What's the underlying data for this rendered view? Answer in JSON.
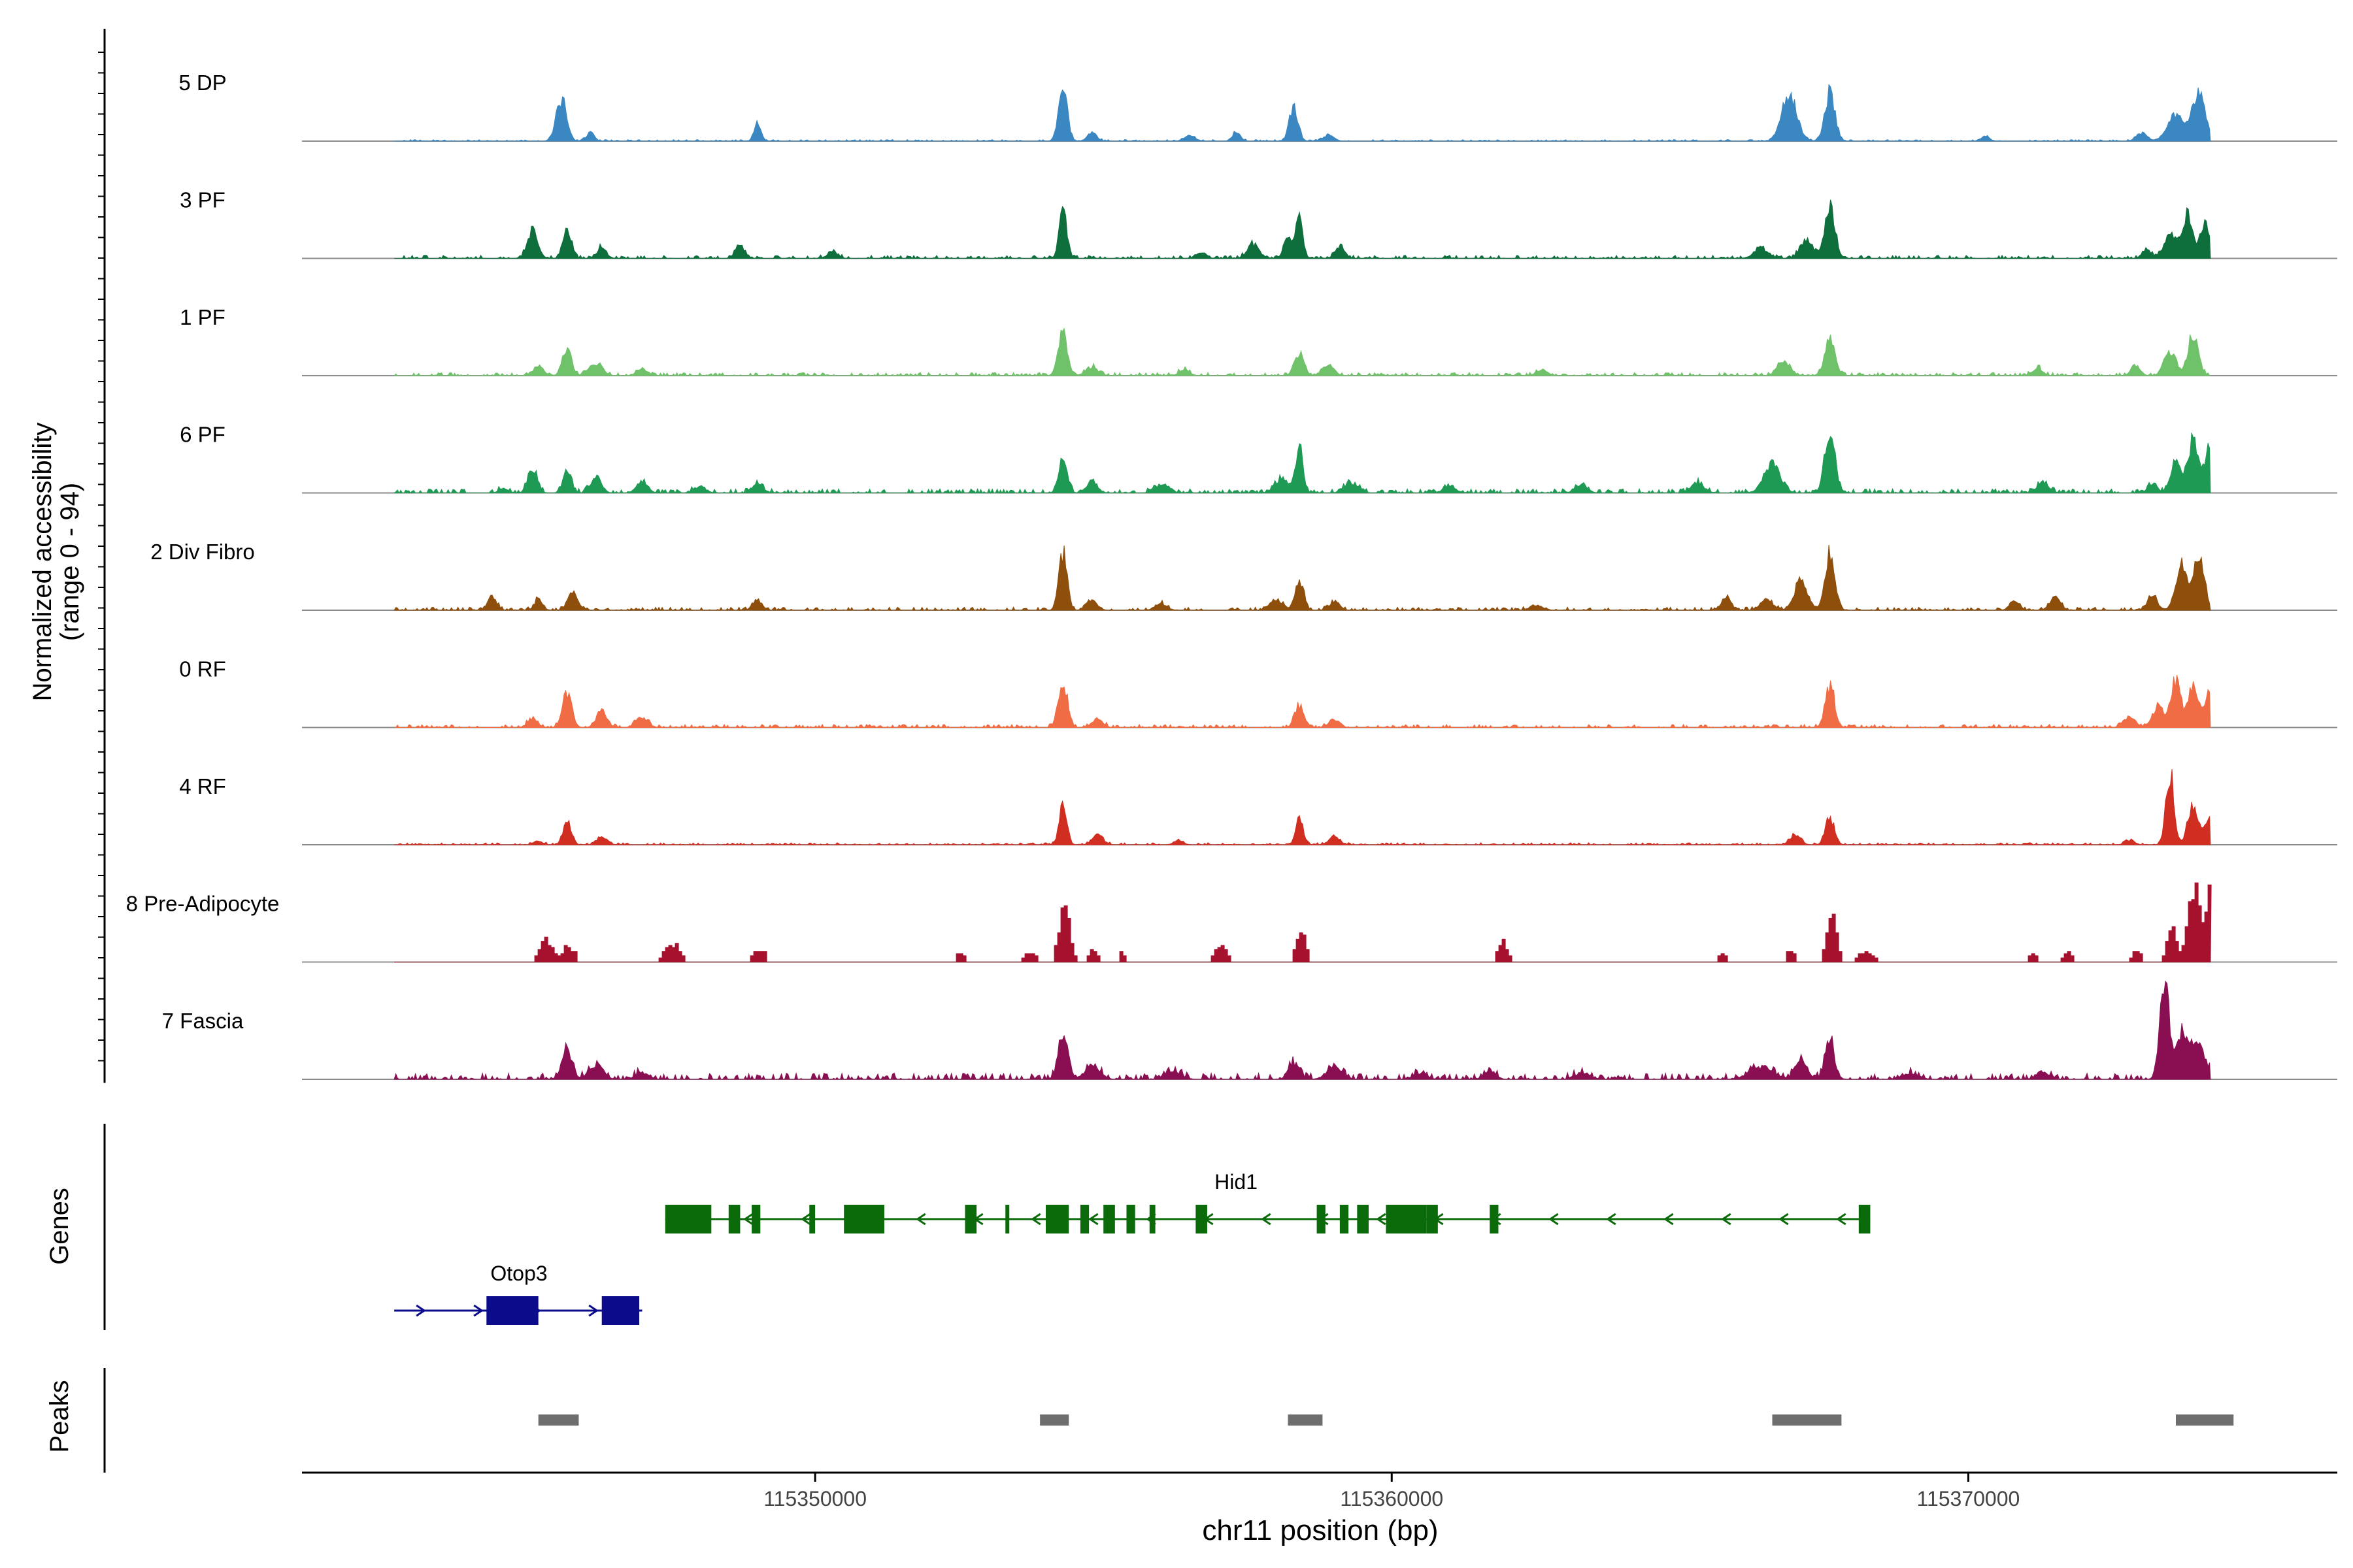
{
  "chart_data": {
    "type": "area",
    "chromosome": "chr11",
    "xlabel": "chr11 position (bp)",
    "ylabel_line1": "Normalized accessibility",
    "ylabel_line2": "(range 0 - 94)",
    "y_range": [
      0,
      94
    ],
    "xlim": [
      115341100,
      115376400
    ],
    "data_start": 115342700,
    "data_end": 115374200,
    "xticks": [
      {
        "value": 115350000,
        "label": "115350000"
      },
      {
        "value": 115360000,
        "label": "115360000"
      },
      {
        "value": 115370000,
        "label": "115370000"
      }
    ],
    "tracks": [
      {
        "name": "5 DP",
        "color": "#3a87c2",
        "noise": 1.5,
        "floor": 0,
        "peaks": [
          [
            115345600,
            40,
            90
          ],
          [
            115346100,
            8,
            70
          ],
          [
            115349000,
            16,
            60
          ],
          [
            115354300,
            52,
            75
          ],
          [
            115354800,
            8,
            80
          ],
          [
            115356500,
            6,
            90
          ],
          [
            115357300,
            8,
            70
          ],
          [
            115358300,
            32,
            75
          ],
          [
            115358900,
            6,
            90
          ],
          [
            115366900,
            44,
            130
          ],
          [
            115367600,
            48,
            85
          ],
          [
            115370300,
            5,
            70
          ],
          [
            115373000,
            8,
            90
          ],
          [
            115373600,
            24,
            150
          ],
          [
            115374000,
            46,
            110
          ]
        ]
      },
      {
        "name": "3 PF",
        "color": "#0e6e3c",
        "noise": 3,
        "floor": 0,
        "peaks": [
          [
            115345100,
            26,
            90
          ],
          [
            115345700,
            28,
            70
          ],
          [
            115346300,
            10,
            80
          ],
          [
            115348700,
            12,
            80
          ],
          [
            115350300,
            6,
            90
          ],
          [
            115354300,
            46,
            65
          ],
          [
            115356700,
            6,
            80
          ],
          [
            115357600,
            14,
            100
          ],
          [
            115358200,
            22,
            70
          ],
          [
            115358400,
            40,
            60
          ],
          [
            115359100,
            12,
            80
          ],
          [
            115366400,
            10,
            120
          ],
          [
            115367200,
            18,
            110
          ],
          [
            115367600,
            52,
            85
          ],
          [
            115373100,
            8,
            80
          ],
          [
            115373500,
            22,
            110
          ],
          [
            115373800,
            40,
            90
          ],
          [
            115374100,
            32,
            80
          ]
        ]
      },
      {
        "name": "1 PF",
        "color": "#70c26a",
        "noise": 3,
        "floor": 0,
        "peaks": [
          [
            115345200,
            9,
            90
          ],
          [
            115345700,
            24,
            80
          ],
          [
            115346200,
            12,
            110
          ],
          [
            115347000,
            6,
            100
          ],
          [
            115354300,
            40,
            80
          ],
          [
            115354800,
            8,
            110
          ],
          [
            115356400,
            6,
            90
          ],
          [
            115358400,
            22,
            80
          ],
          [
            115358900,
            10,
            100
          ],
          [
            115362600,
            6,
            90
          ],
          [
            115366800,
            14,
            110
          ],
          [
            115367600,
            34,
            90
          ],
          [
            115371200,
            8,
            80
          ],
          [
            115372900,
            10,
            80
          ],
          [
            115373500,
            24,
            100
          ],
          [
            115373900,
            40,
            90
          ]
        ]
      },
      {
        "name": "6 PF",
        "color": "#1f9a55",
        "noise": 4,
        "floor": 0,
        "peaks": [
          [
            115344600,
            4,
            80
          ],
          [
            115345100,
            22,
            80
          ],
          [
            115345700,
            20,
            70
          ],
          [
            115346200,
            16,
            90
          ],
          [
            115347000,
            12,
            90
          ],
          [
            115348000,
            6,
            100
          ],
          [
            115349000,
            10,
            90
          ],
          [
            115354300,
            36,
            70
          ],
          [
            115354800,
            12,
            90
          ],
          [
            115356000,
            8,
            110
          ],
          [
            115358100,
            14,
            120
          ],
          [
            115358400,
            50,
            60
          ],
          [
            115359300,
            10,
            120
          ],
          [
            115361000,
            6,
            110
          ],
          [
            115363300,
            8,
            100
          ],
          [
            115365300,
            10,
            110
          ],
          [
            115366600,
            28,
            140
          ],
          [
            115367600,
            60,
            90
          ],
          [
            115371300,
            10,
            100
          ],
          [
            115373200,
            8,
            80
          ],
          [
            115373600,
            28,
            90
          ],
          [
            115373900,
            52,
            90
          ],
          [
            115374200,
            48,
            90
          ]
        ]
      },
      {
        "name": "2 Div Fibro",
        "color": "#8f4f0c",
        "noise": 3,
        "floor": 0,
        "peaks": [
          [
            115344400,
            12,
            80
          ],
          [
            115345200,
            10,
            70
          ],
          [
            115345800,
            16,
            90
          ],
          [
            115349000,
            10,
            80
          ],
          [
            115354300,
            54,
            70
          ],
          [
            115354800,
            10,
            90
          ],
          [
            115356000,
            6,
            100
          ],
          [
            115358000,
            10,
            110
          ],
          [
            115358400,
            30,
            70
          ],
          [
            115359000,
            8,
            90
          ],
          [
            115362500,
            5,
            100
          ],
          [
            115365800,
            12,
            80
          ],
          [
            115366500,
            10,
            110
          ],
          [
            115367100,
            30,
            110
          ],
          [
            115367600,
            56,
            85
          ],
          [
            115370800,
            10,
            80
          ],
          [
            115371500,
            12,
            90
          ],
          [
            115373200,
            12,
            90
          ],
          [
            115373700,
            42,
            100
          ],
          [
            115374000,
            52,
            90
          ]
        ]
      },
      {
        "name": "0 RF",
        "color": "#f06c45",
        "noise": 3,
        "floor": 0,
        "peaks": [
          [
            115345100,
            8,
            90
          ],
          [
            115345700,
            34,
            80
          ],
          [
            115346300,
            16,
            90
          ],
          [
            115347000,
            10,
            100
          ],
          [
            115354300,
            40,
            80
          ],
          [
            115354900,
            8,
            90
          ],
          [
            115358400,
            22,
            80
          ],
          [
            115359000,
            8,
            90
          ],
          [
            115367600,
            40,
            80
          ],
          [
            115372800,
            10,
            100
          ],
          [
            115373300,
            20,
            100
          ],
          [
            115373600,
            46,
            80
          ],
          [
            115373900,
            40,
            90
          ],
          [
            115374200,
            32,
            90
          ]
        ]
      },
      {
        "name": "4 RF",
        "color": "#d12e22",
        "noise": 2,
        "floor": 0,
        "peaks": [
          [
            115345200,
            4,
            70
          ],
          [
            115345700,
            24,
            70
          ],
          [
            115346300,
            8,
            90
          ],
          [
            115354300,
            40,
            65
          ],
          [
            115354900,
            10,
            90
          ],
          [
            115356300,
            4,
            80
          ],
          [
            115358400,
            24,
            65
          ],
          [
            115359000,
            8,
            90
          ],
          [
            115367000,
            10,
            90
          ],
          [
            115367600,
            26,
            75
          ],
          [
            115372800,
            4,
            80
          ],
          [
            115373500,
            70,
            70
          ],
          [
            115373900,
            36,
            90
          ],
          [
            115374200,
            26,
            90
          ]
        ]
      },
      {
        "name": "8 Pre-Adipocyte",
        "color": "#a6122e",
        "noise": 0,
        "floor": 3,
        "blocky": true,
        "peaks": [
          [
            115345300,
            22,
            110
          ],
          [
            115345700,
            16,
            100
          ],
          [
            115347500,
            18,
            130
          ],
          [
            115349000,
            12,
            110
          ],
          [
            115352500,
            8,
            80
          ],
          [
            115353700,
            8,
            110
          ],
          [
            115354300,
            58,
            90
          ],
          [
            115354800,
            12,
            70
          ],
          [
            115355300,
            8,
            70
          ],
          [
            115357000,
            16,
            110
          ],
          [
            115358400,
            34,
            80
          ],
          [
            115361900,
            22,
            80
          ],
          [
            115365700,
            8,
            80
          ],
          [
            115366900,
            12,
            70
          ],
          [
            115367600,
            52,
            80
          ],
          [
            115368200,
            10,
            140
          ],
          [
            115371100,
            8,
            80
          ],
          [
            115371700,
            8,
            80
          ],
          [
            115372900,
            10,
            80
          ],
          [
            115373500,
            36,
            70
          ],
          [
            115373900,
            68,
            120
          ],
          [
            115374200,
            74,
            80
          ]
        ]
      },
      {
        "name": "7 Fascia",
        "color": "#8a0e52",
        "noise": 6,
        "floor": 0,
        "peaks": [
          [
            115345700,
            26,
            90
          ],
          [
            115346200,
            14,
            120
          ],
          [
            115347000,
            6,
            110
          ],
          [
            115354300,
            46,
            80
          ],
          [
            115354800,
            12,
            130
          ],
          [
            115356200,
            8,
            140
          ],
          [
            115358300,
            16,
            90
          ],
          [
            115359000,
            12,
            130
          ],
          [
            115360500,
            6,
            110
          ],
          [
            115361700,
            8,
            100
          ],
          [
            115363300,
            6,
            130
          ],
          [
            115366400,
            12,
            200
          ],
          [
            115367100,
            20,
            100
          ],
          [
            115367600,
            38,
            80
          ],
          [
            115369000,
            6,
            140
          ],
          [
            115371300,
            6,
            120
          ],
          [
            115373400,
            92,
            80
          ],
          [
            115373700,
            42,
            110
          ],
          [
            115374000,
            36,
            110
          ]
        ]
      }
    ],
    "genes_label": "Genes",
    "genes": [
      {
        "name": "Hid1",
        "strand": "-",
        "color": "#0b6b0b",
        "start": 115347400,
        "end": 115368300,
        "row": 0,
        "exons": [
          [
            115347400,
            115348200
          ],
          [
            115348500,
            115348700
          ],
          [
            115348900,
            115349050
          ],
          [
            115349900,
            115350000
          ],
          [
            115350500,
            115351200
          ],
          [
            115352600,
            115352800
          ],
          [
            115353300,
            115353350
          ],
          [
            115354000,
            115354400
          ],
          [
            115354600,
            115354750
          ],
          [
            115355000,
            115355200
          ],
          [
            115355400,
            115355550
          ],
          [
            115355800,
            115355900
          ],
          [
            115356600,
            115356800
          ],
          [
            115358700,
            115358850
          ],
          [
            115359100,
            115359250
          ],
          [
            115359400,
            115359600
          ],
          [
            115359900,
            115360600
          ],
          [
            115360600,
            115360800
          ],
          [
            115361700,
            115361850
          ],
          [
            115368100,
            115368300
          ]
        ]
      },
      {
        "name": "Otop3",
        "strand": "+",
        "color": "#0b0b8c",
        "start": 115342700,
        "end": 115347000,
        "row": 1,
        "exons": [
          [
            115344300,
            115345200
          ],
          [
            115346300,
            115346950
          ]
        ]
      }
    ],
    "peaks_label": "Peaks",
    "peaks_color": "#6e6e6e",
    "peak_regions": [
      [
        115345200,
        115345900
      ],
      [
        115353900,
        115354400
      ],
      [
        115358200,
        115358800
      ],
      [
        115366600,
        115367800
      ],
      [
        115373600,
        115374600
      ]
    ]
  }
}
